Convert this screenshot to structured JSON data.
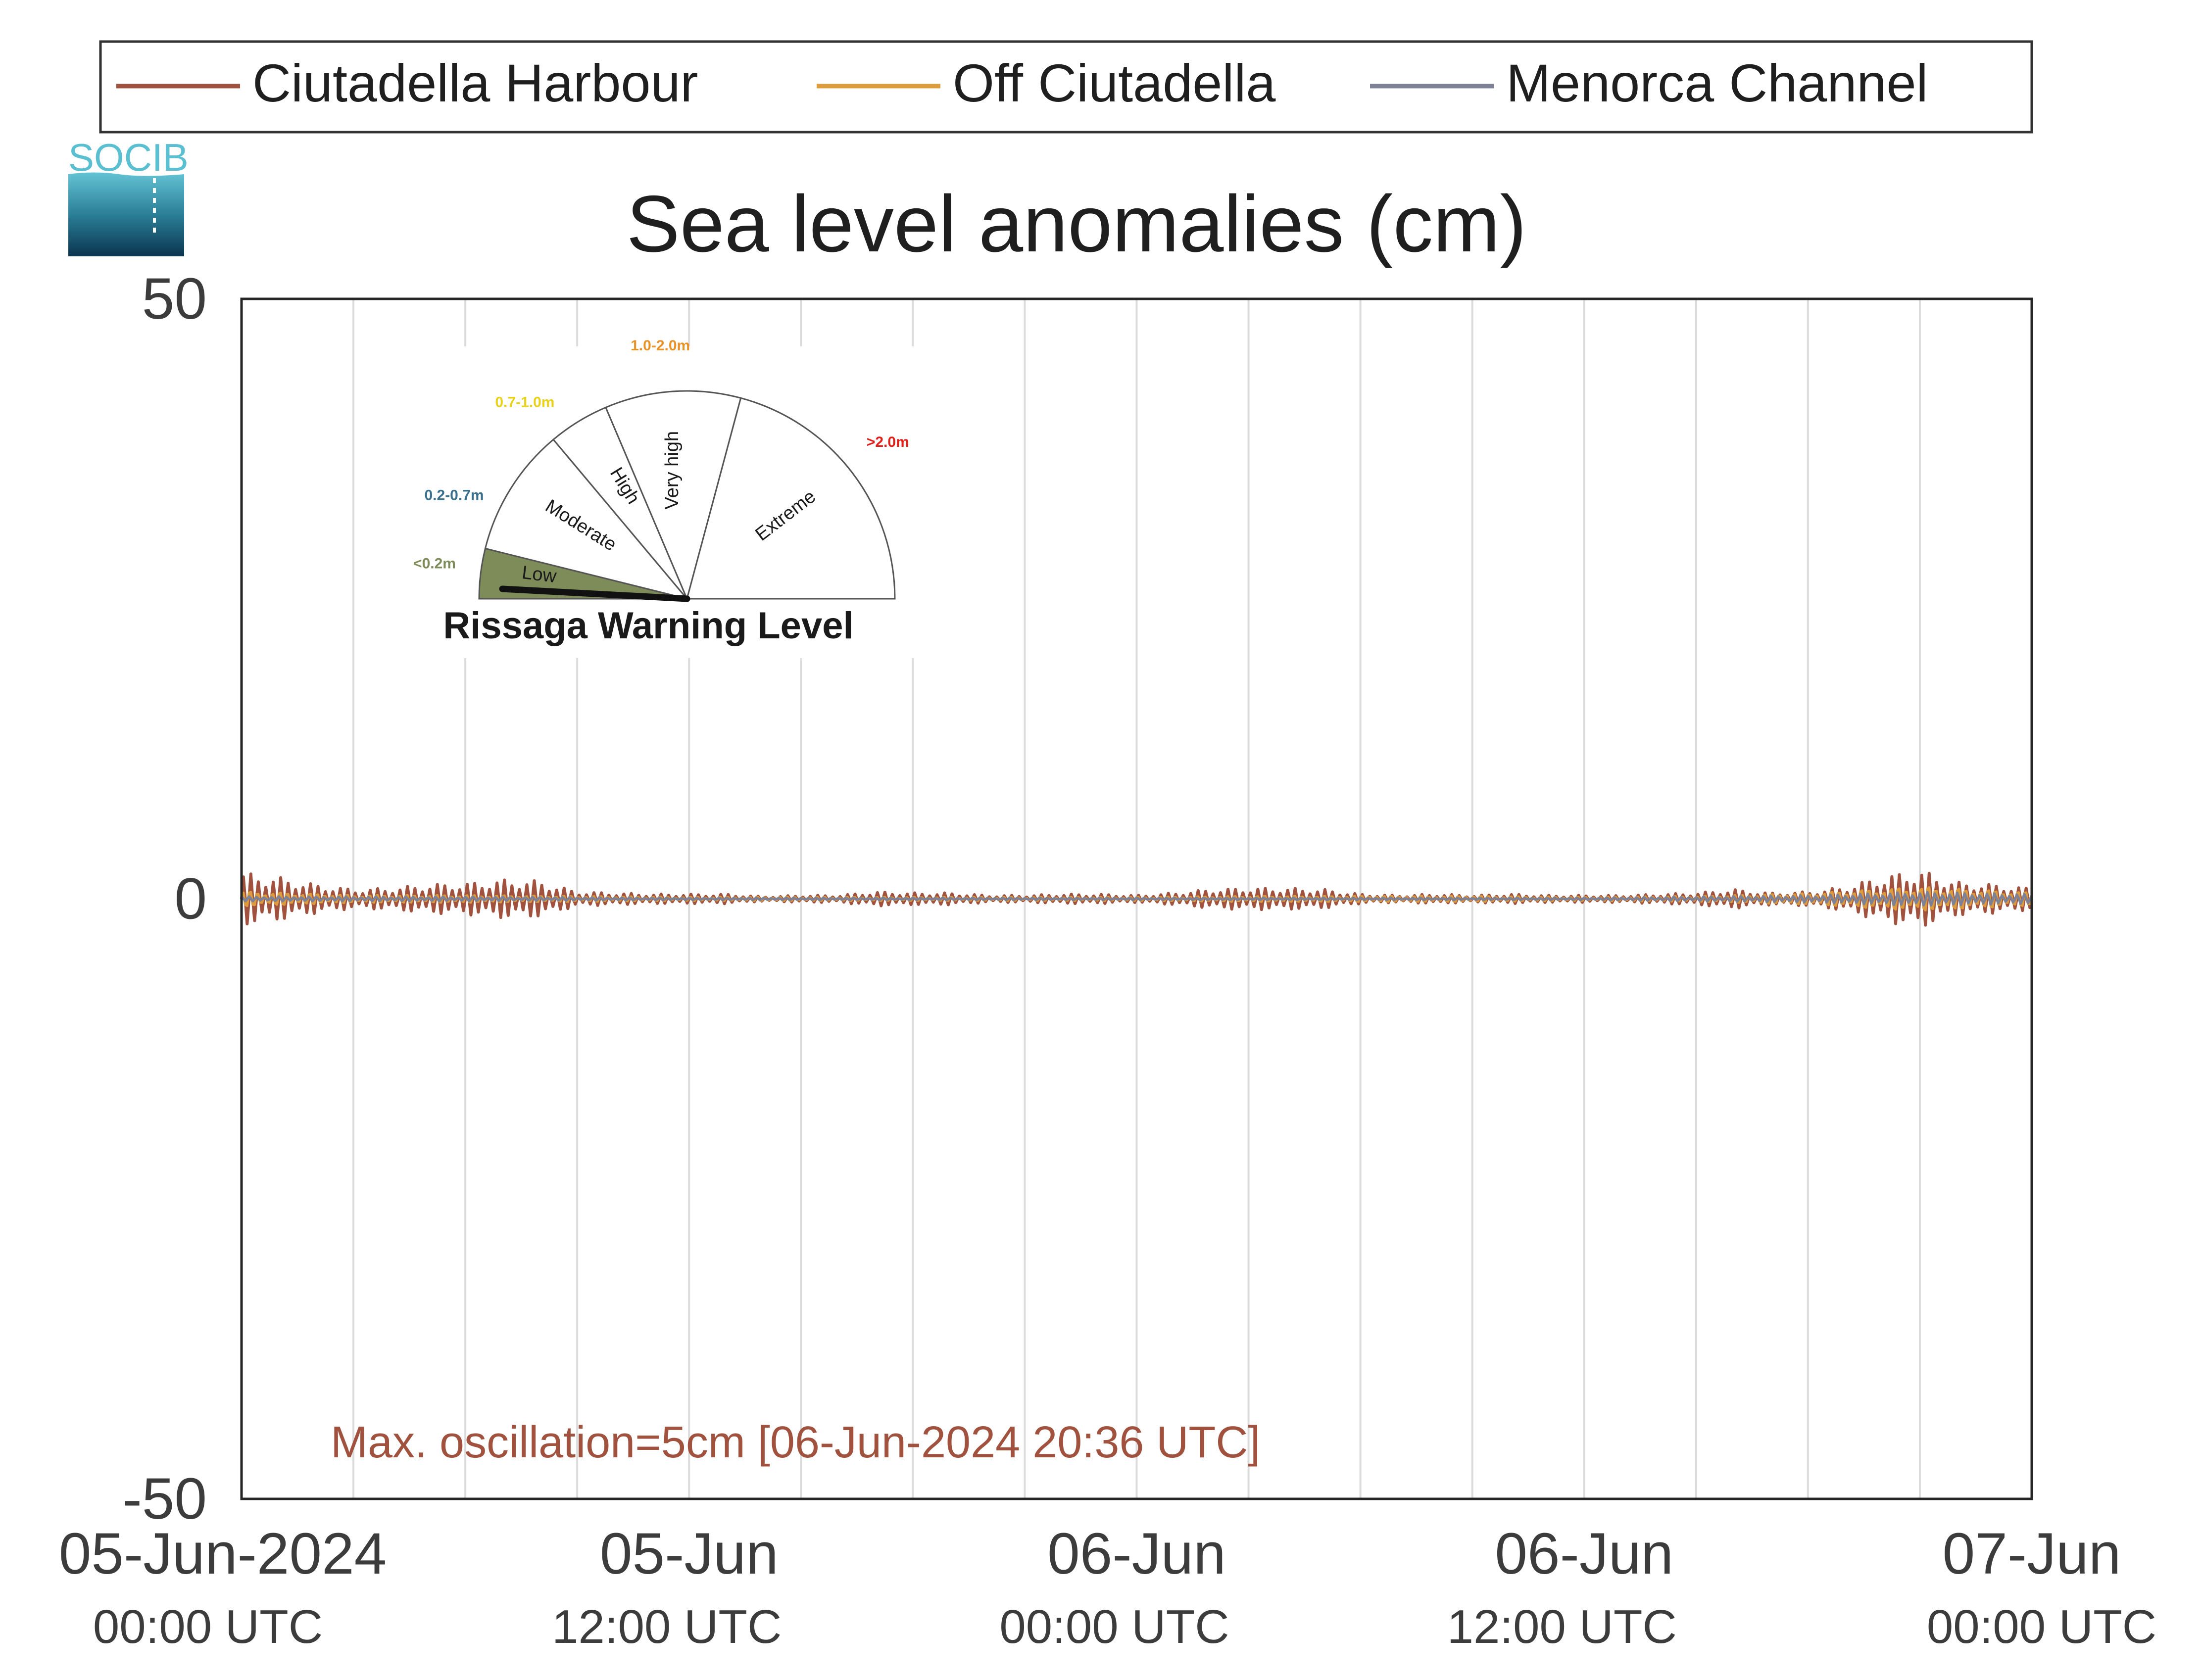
{
  "chart_data": {
    "type": "line",
    "title": "Sea level anomalies (cm)",
    "ylim": [
      -50,
      50
    ],
    "yticks": [
      {
        "value": 50,
        "label": "50"
      },
      {
        "value": 0,
        "label": "0"
      },
      {
        "value": -50,
        "label": "-50"
      }
    ],
    "xlim": [
      "2024-06-05 00:00",
      "2024-06-07 00:00"
    ],
    "xticks": [
      {
        "time": "2024-06-05 00:00",
        "date_label": "05-Jun-2024",
        "time_label": "00:00 UTC"
      },
      {
        "time": "2024-06-05 12:00",
        "date_label": "05-Jun",
        "time_label": "12:00 UTC"
      },
      {
        "time": "2024-06-06 00:00",
        "date_label": "06-Jun",
        "time_label": "00:00 UTC"
      },
      {
        "time": "2024-06-06 12:00",
        "date_label": "06-Jun",
        "time_label": "12:00 UTC"
      },
      {
        "time": "2024-06-07 00:00",
        "date_label": "07-Jun",
        "time_label": "00:00 UTC"
      }
    ],
    "vertical_grid_hours": [
      3,
      6,
      9,
      12,
      15,
      18,
      21,
      24,
      27,
      30,
      33,
      36,
      39,
      42,
      45
    ],
    "grid": true,
    "legend_position": "top",
    "series": [
      {
        "name": "Ciutadella Harbour",
        "color": "#a0523e",
        "points": [
          [
            "2024-06-05 00:00",
            2.2
          ],
          [
            "2024-06-05 01:00",
            1.8
          ],
          [
            "2024-06-05 02:00",
            1.2
          ],
          [
            "2024-06-05 03:00",
            0.8
          ],
          [
            "2024-06-05 04:00",
            0.9
          ],
          [
            "2024-06-05 05:00",
            1.2
          ],
          [
            "2024-06-05 06:00",
            1.3
          ],
          [
            "2024-06-05 07:00",
            1.6
          ],
          [
            "2024-06-05 08:00",
            1.5
          ],
          [
            "2024-06-05 09:00",
            0.6
          ],
          [
            "2024-06-05 10:00",
            0.5
          ],
          [
            "2024-06-05 11:00",
            0.4
          ],
          [
            "2024-06-05 12:00",
            0.4
          ],
          [
            "2024-06-05 13:00",
            0.4
          ],
          [
            "2024-06-05 14:00",
            0.2
          ],
          [
            "2024-06-05 15:00",
            0.3
          ],
          [
            "2024-06-05 16:00",
            0.3
          ],
          [
            "2024-06-05 17:00",
            0.6
          ],
          [
            "2024-06-05 18:00",
            0.5
          ],
          [
            "2024-06-05 19:00",
            0.5
          ],
          [
            "2024-06-05 20:00",
            0.3
          ],
          [
            "2024-06-05 21:00",
            0.3
          ],
          [
            "2024-06-05 22:00",
            0.4
          ],
          [
            "2024-06-05 23:00",
            0.4
          ],
          [
            "2024-06-06 00:00",
            0.3
          ],
          [
            "2024-06-06 01:00",
            0.5
          ],
          [
            "2024-06-06 02:00",
            0.8
          ],
          [
            "2024-06-06 03:00",
            0.9
          ],
          [
            "2024-06-06 04:00",
            0.9
          ],
          [
            "2024-06-06 05:00",
            0.8
          ],
          [
            "2024-06-06 06:00",
            0.4
          ],
          [
            "2024-06-06 07:00",
            0.3
          ],
          [
            "2024-06-06 08:00",
            0.4
          ],
          [
            "2024-06-06 09:00",
            0.3
          ],
          [
            "2024-06-06 10:00",
            0.4
          ],
          [
            "2024-06-06 11:00",
            0.3
          ],
          [
            "2024-06-06 12:00",
            0.3
          ],
          [
            "2024-06-06 13:00",
            0.3
          ],
          [
            "2024-06-06 14:00",
            0.4
          ],
          [
            "2024-06-06 15:00",
            0.5
          ],
          [
            "2024-06-06 16:00",
            0.8
          ],
          [
            "2024-06-06 17:00",
            0.5
          ],
          [
            "2024-06-06 18:00",
            0.6
          ],
          [
            "2024-06-06 19:00",
            1.0
          ],
          [
            "2024-06-06 20:00",
            1.9
          ],
          [
            "2024-06-06 21:00",
            2.4
          ],
          [
            "2024-06-06 22:00",
            1.4
          ],
          [
            "2024-06-06 23:00",
            1.2
          ],
          [
            "2024-06-07 00:00",
            0.9
          ]
        ]
      },
      {
        "name": "Off Ciutadella",
        "color": "#dc9b3c",
        "points": [
          [
            "2024-06-05 00:00",
            0.8
          ],
          [
            "2024-06-05 03:00",
            0.4
          ],
          [
            "2024-06-05 06:00",
            0.4
          ],
          [
            "2024-06-05 09:00",
            0.3
          ],
          [
            "2024-06-05 12:00",
            0.2
          ],
          [
            "2024-06-05 15:00",
            0.2
          ],
          [
            "2024-06-05 18:00",
            0.2
          ],
          [
            "2024-06-05 21:00",
            0.2
          ],
          [
            "2024-06-06 00:00",
            0.2
          ],
          [
            "2024-06-06 03:00",
            0.3
          ],
          [
            "2024-06-06 06:00",
            0.3
          ],
          [
            "2024-06-06 09:00",
            0.3
          ],
          [
            "2024-06-06 12:00",
            0.2
          ],
          [
            "2024-06-06 15:00",
            0.3
          ],
          [
            "2024-06-06 18:00",
            0.6
          ],
          [
            "2024-06-06 21:00",
            1.3
          ],
          [
            "2024-06-07 00:00",
            0.7
          ]
        ]
      },
      {
        "name": "Menorca Channel",
        "color": "#7d8296",
        "points": [
          [
            "2024-06-05 00:00",
            0.2
          ],
          [
            "2024-06-05 06:00",
            0.2
          ],
          [
            "2024-06-05 12:00",
            0.1
          ],
          [
            "2024-06-05 18:00",
            0.1
          ],
          [
            "2024-06-06 00:00",
            0.1
          ],
          [
            "2024-06-06 06:00",
            0.1
          ],
          [
            "2024-06-06 12:00",
            0.1
          ],
          [
            "2024-06-06 18:00",
            0.3
          ],
          [
            "2024-06-06 21:00",
            0.6
          ],
          [
            "2024-06-07 00:00",
            0.4
          ]
        ]
      }
    ],
    "annotation": {
      "text": "Max. oscillation=5cm [06-Jun-2024 20:36 UTC]",
      "color": "#a0523e"
    },
    "logo_text": "SOCIB",
    "logo_color": "#59bfd1",
    "warning_gauge": {
      "title": "Rissaga Warning Level",
      "current_level": "Low",
      "levels": [
        {
          "name": "Low",
          "range": "<0.2m",
          "color": "#7e8c5a"
        },
        {
          "name": "Moderate",
          "range": "0.2-0.7m",
          "color": "#3a6f8d"
        },
        {
          "name": "High",
          "range": "0.7-1.0m",
          "color": "#e8d21b"
        },
        {
          "name": "Very high",
          "range": "1.0-2.0m",
          "color": "#e8922a"
        },
        {
          "name": "Extreme",
          "range": ">2.0m",
          "color": "#e0201b"
        }
      ]
    }
  }
}
